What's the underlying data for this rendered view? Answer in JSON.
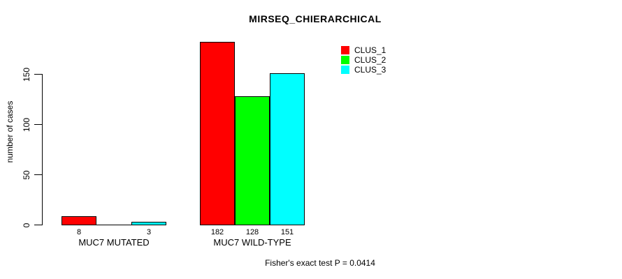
{
  "title": "MIRSEQ_CHIERARCHICAL",
  "annotation": "Fisher's exact test P = 0.0414",
  "colors": {
    "clus_1": "#FF0000",
    "clus_2": "#00FF00",
    "clus_3": "#00FFFF",
    "axis": "#000000",
    "background": "#FFFFFF"
  },
  "chart_data": {
    "type": "bar",
    "title": "MIRSEQ_CHIERARCHICAL",
    "xlabel": "",
    "ylabel": "number of cases",
    "ylim": [
      0,
      150
    ],
    "yticks": [
      0,
      50,
      100,
      150
    ],
    "grid": false,
    "legend_position": "top-right",
    "categories": [
      "MUC7 MUTATED",
      "MUC7 WILD-TYPE"
    ],
    "series": [
      {
        "name": "CLUS_1",
        "color": "#FF0000",
        "values": [
          8,
          182
        ]
      },
      {
        "name": "CLUS_2",
        "color": "#00FF00",
        "values": [
          0,
          128
        ]
      },
      {
        "name": "CLUS_3",
        "color": "#00FFFF",
        "values": [
          3,
          151
        ]
      }
    ],
    "bar_value_labels": [
      [
        "8",
        "",
        "3"
      ],
      [
        "182",
        "128",
        "151"
      ]
    ],
    "annotation": "Fisher's exact test P = 0.0414"
  }
}
